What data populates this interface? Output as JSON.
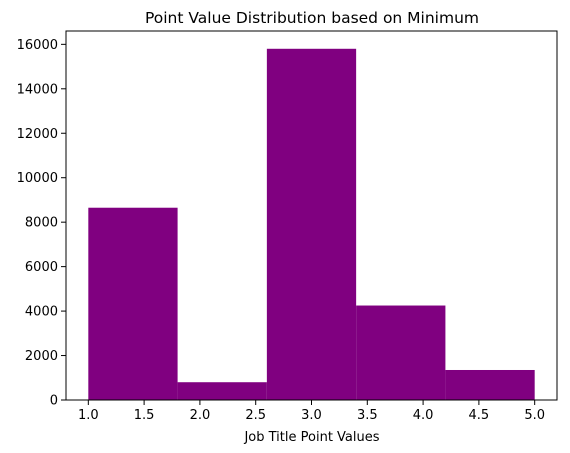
{
  "chart_data": {
    "type": "bar",
    "title": "Point Value Distribution based on Minimum",
    "xlabel": "Job Title Point Values",
    "ylabel": "",
    "bins": [
      {
        "start": 1.0,
        "end": 1.8,
        "count": 8650
      },
      {
        "start": 1.8,
        "end": 2.6,
        "count": 800
      },
      {
        "start": 2.6,
        "end": 3.4,
        "count": 15800
      },
      {
        "start": 3.4,
        "end": 4.2,
        "count": 4250
      },
      {
        "start": 4.2,
        "end": 5.0,
        "count": 1350
      }
    ],
    "xlim": [
      0.8,
      5.2
    ],
    "ylim": [
      0,
      16600
    ],
    "xticks": [
      "1.0",
      "1.5",
      "2.0",
      "2.5",
      "3.0",
      "3.5",
      "4.0",
      "4.5",
      "5.0"
    ],
    "yticks": [
      "0",
      "2000",
      "4000",
      "6000",
      "8000",
      "10000",
      "12000",
      "14000",
      "16000"
    ],
    "grid": false,
    "bar_color": "#800080"
  }
}
